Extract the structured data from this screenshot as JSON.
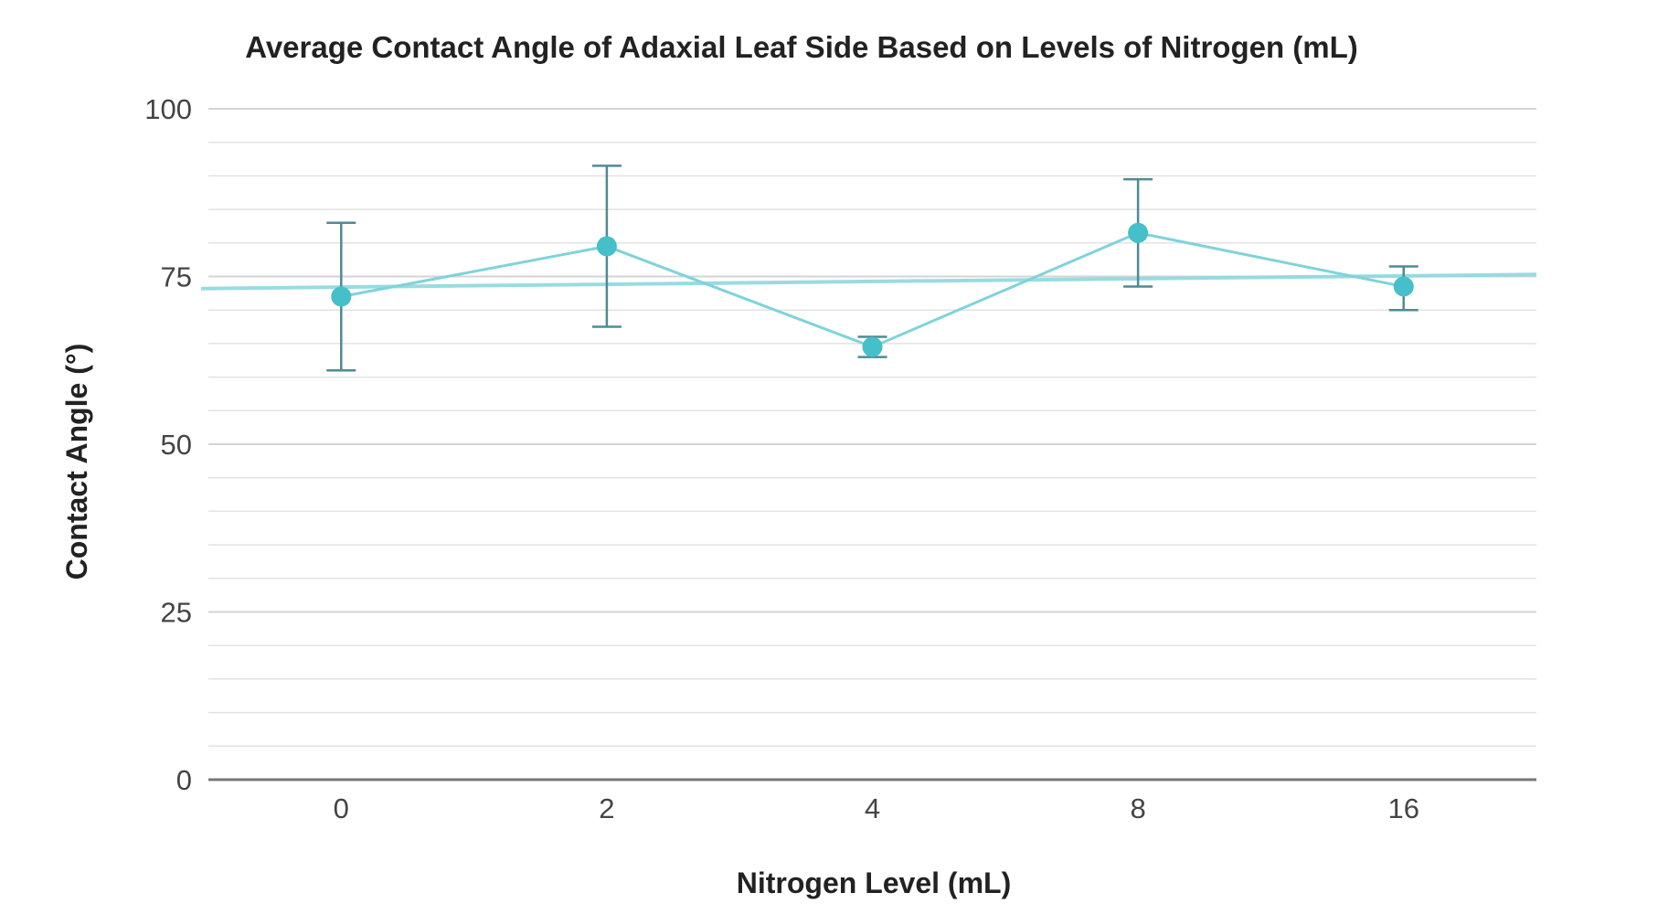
{
  "chart_data": {
    "type": "line",
    "title": "Average Contact Angle of Adaxial Leaf Side Based on Levels of Nitrogen (mL)",
    "xlabel": "Nitrogen Level (mL)",
    "ylabel": "Contact Angle (°)",
    "categories": [
      "0",
      "2",
      "4",
      "8",
      "16"
    ],
    "series": [
      {
        "values": [
          72,
          79.5,
          64.5,
          81.5,
          73.5
        ],
        "error_low": [
          61,
          67.5,
          63,
          73.5,
          70
        ],
        "error_high": [
          83,
          91.5,
          66,
          89.5,
          76.5
        ]
      }
    ],
    "trendline": {
      "start": 73.2,
      "end": 75.3
    },
    "ylim": [
      0,
      100
    ],
    "yticks": [
      0,
      25,
      50,
      75,
      100
    ],
    "minor_grid_step": 5,
    "grid": true,
    "legend": "none",
    "colors": {
      "line": "#7fd3db",
      "marker": "#45bfc9",
      "errorbar": "#4f8a94",
      "trend": "#8fd8df",
      "grid": "#e3e3e3",
      "baseline": "#777777"
    }
  }
}
